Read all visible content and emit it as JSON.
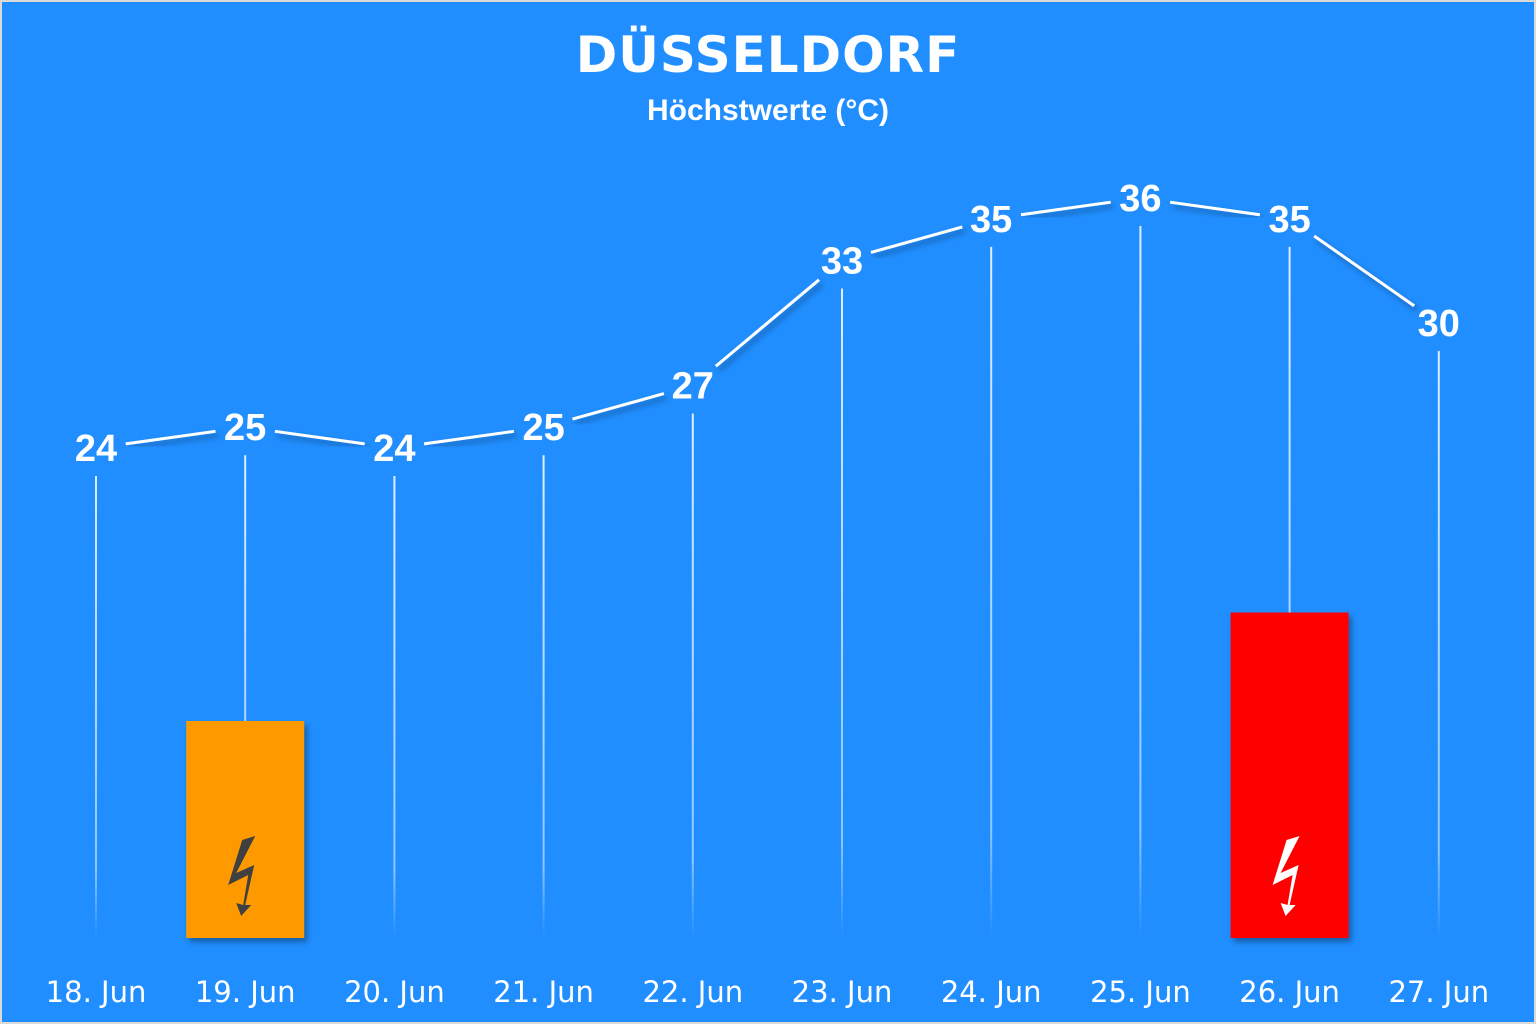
{
  "chart_data": {
    "type": "line",
    "title": "DÜSSELDORF",
    "subtitle": "Höchstwerte (°C)",
    "categories": [
      "18. Jun",
      "19. Jun",
      "20. Jun",
      "21. Jun",
      "22. Jun",
      "23. Jun",
      "24. Jun",
      "25. Jun",
      "26. Jun",
      "27. Jun"
    ],
    "values": [
      24,
      25,
      24,
      25,
      27,
      33,
      35,
      36,
      35,
      30
    ],
    "grid": false,
    "warnings": [
      {
        "category": "19. Jun",
        "level": 2,
        "color": "#ff9900",
        "icon": "lightning-icon",
        "icon_color": "#404040"
      },
      {
        "category": "26. Jun",
        "level": 3,
        "color": "#ff0000",
        "icon": "lightning-icon",
        "icon_color": "#ffffff"
      }
    ],
    "colors": {
      "background": "#208eff",
      "line": "#ffffff"
    }
  }
}
